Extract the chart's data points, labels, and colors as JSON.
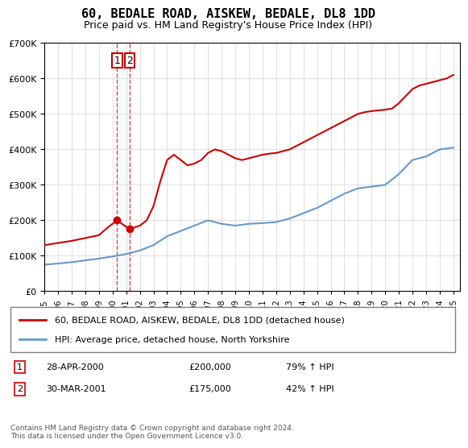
{
  "title": "60, BEDALE ROAD, AISKEW, BEDALE, DL8 1DD",
  "subtitle": "Price paid vs. HM Land Registry's House Price Index (HPI)",
  "legend_line1": "60, BEDALE ROAD, AISKEW, BEDALE, DL8 1DD (detached house)",
  "legend_line2": "HPI: Average price, detached house, North Yorkshire",
  "footer": "Contains HM Land Registry data © Crown copyright and database right 2024.\nThis data is licensed under the Open Government Licence v3.0.",
  "sale1_label": "1",
  "sale1_date": "28-APR-2000",
  "sale1_price": "£200,000",
  "sale1_hpi": "79% ↑ HPI",
  "sale1_year": 2000.32,
  "sale1_value": 200000,
  "sale2_label": "2",
  "sale2_date": "30-MAR-2001",
  "sale2_price": "£175,000",
  "sale2_hpi": "42% ↑ HPI",
  "sale2_year": 2001.25,
  "sale2_value": 175000,
  "red_color": "#cc0000",
  "blue_color": "#6699cc",
  "box_color": "#cc0000",
  "ylim": [
    0,
    700000
  ],
  "xlim": [
    1995,
    2025.5
  ],
  "hpi_years": [
    1995,
    1996,
    1997,
    1998,
    1999,
    2000,
    2001,
    2002,
    2003,
    2004,
    2005,
    2006,
    2007,
    2008,
    2009,
    2010,
    2011,
    2012,
    2013,
    2014,
    2015,
    2016,
    2017,
    2018,
    2019,
    2020,
    2021,
    2022,
    2023,
    2024,
    2025
  ],
  "hpi_values": [
    75000,
    78000,
    82000,
    87000,
    92000,
    98000,
    105000,
    115000,
    130000,
    155000,
    170000,
    185000,
    200000,
    190000,
    185000,
    190000,
    192000,
    195000,
    205000,
    220000,
    235000,
    255000,
    275000,
    290000,
    295000,
    300000,
    330000,
    370000,
    380000,
    400000,
    405000
  ],
  "price_years": [
    1995.0,
    1995.5,
    1996.0,
    1996.5,
    1997.0,
    1997.5,
    1998.0,
    1998.5,
    1999.0,
    1999.5,
    2000.32,
    2001.25,
    2002.0,
    2002.5,
    2003.0,
    2003.5,
    2004.0,
    2004.5,
    2005.0,
    2005.5,
    2006.0,
    2006.5,
    2007.0,
    2007.5,
    2008.0,
    2008.5,
    2009.0,
    2009.5,
    2010.0,
    2010.5,
    2011.0,
    2011.5,
    2012.0,
    2012.5,
    2013.0,
    2013.5,
    2014.0,
    2014.5,
    2015.0,
    2015.5,
    2016.0,
    2016.5,
    2017.0,
    2017.5,
    2018.0,
    2018.5,
    2019.0,
    2019.5,
    2020.0,
    2020.5,
    2021.0,
    2021.5,
    2022.0,
    2022.5,
    2023.0,
    2023.5,
    2024.0,
    2024.5,
    2025.0
  ],
  "price_values": [
    130000,
    133000,
    136000,
    139000,
    142000,
    146000,
    150000,
    154000,
    158000,
    175000,
    200000,
    175000,
    185000,
    200000,
    240000,
    310000,
    370000,
    385000,
    370000,
    355000,
    360000,
    370000,
    390000,
    400000,
    395000,
    385000,
    375000,
    370000,
    375000,
    380000,
    385000,
    388000,
    390000,
    395000,
    400000,
    410000,
    420000,
    430000,
    440000,
    450000,
    460000,
    470000,
    480000,
    490000,
    500000,
    505000,
    508000,
    510000,
    512000,
    515000,
    530000,
    550000,
    570000,
    580000,
    585000,
    590000,
    595000,
    600000,
    610000
  ]
}
